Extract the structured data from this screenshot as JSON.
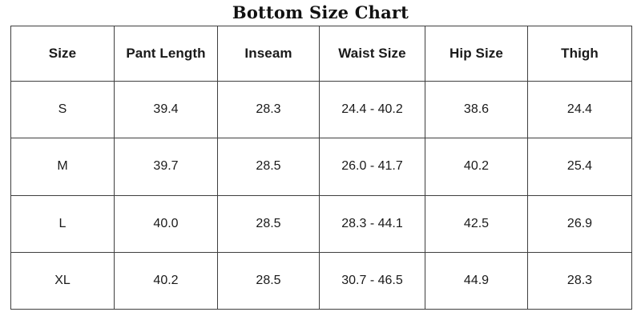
{
  "chart_data": {
    "type": "table",
    "title": "Bottom Size Chart",
    "columns": [
      "Size",
      "Pant Length",
      "Inseam",
      "Waist Size",
      "Hip Size",
      "Thigh"
    ],
    "rows": [
      [
        "S",
        "39.4",
        "28.3",
        "24.4 - 40.2",
        "38.6",
        "24.4"
      ],
      [
        "M",
        "39.7",
        "28.5",
        "26.0 - 41.7",
        "40.2",
        "25.4"
      ],
      [
        "L",
        "40.0",
        "28.5",
        "28.3 - 44.1",
        "42.5",
        "26.9"
      ],
      [
        "XL",
        "40.2",
        "28.5",
        "30.7 - 46.5",
        "44.9",
        "28.3"
      ]
    ],
    "waist_ranges": [
      {
        "size": "S",
        "min": 24.4,
        "max": 40.2
      },
      {
        "size": "M",
        "min": 26.0,
        "max": 41.7
      },
      {
        "size": "L",
        "min": 28.3,
        "max": 44.1
      },
      {
        "size": "XL",
        "min": 30.7,
        "max": 46.5
      }
    ]
  },
  "colors": {
    "background": "#ffffff",
    "text": "#1a1a1a",
    "title_text": "#111111",
    "border": "#3f3f3f"
  }
}
